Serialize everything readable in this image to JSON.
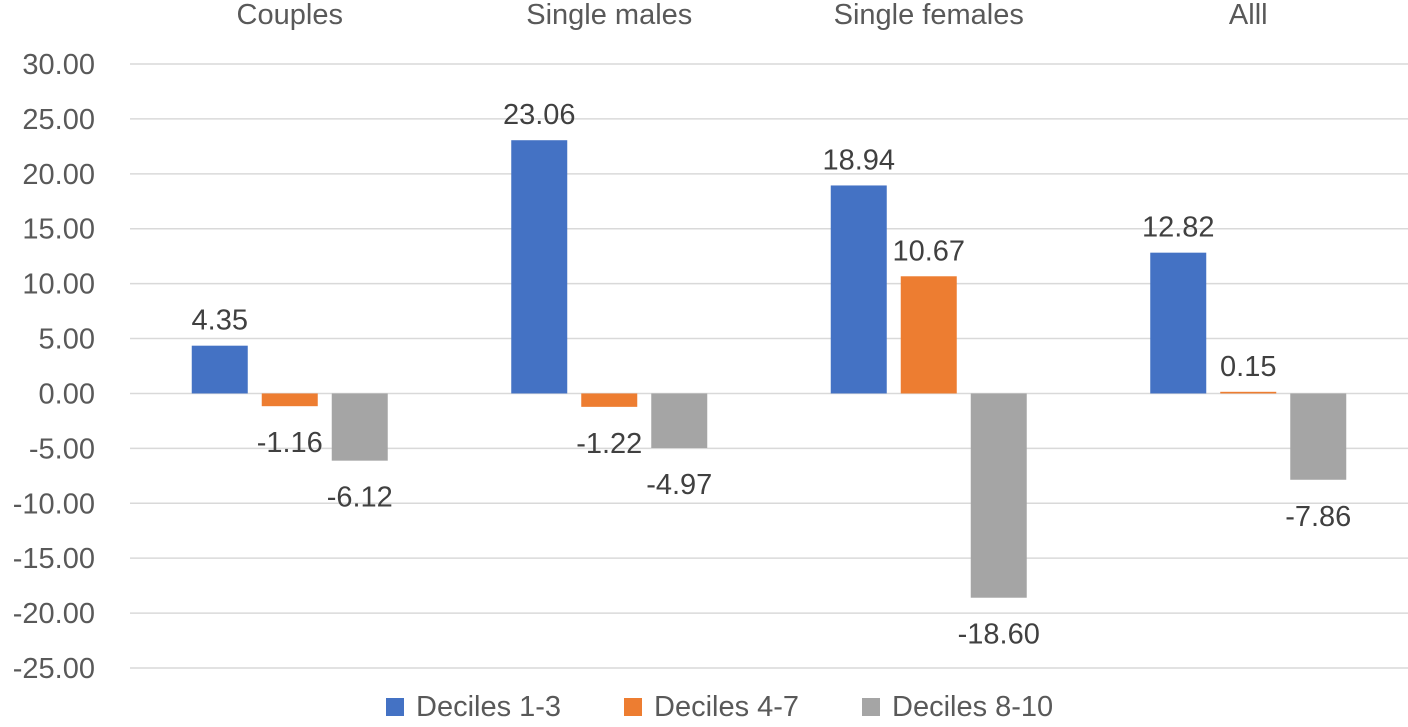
{
  "chart_data": {
    "type": "bar",
    "categories": [
      "Couples",
      "Single males",
      "Single females",
      "Alll"
    ],
    "series": [
      {
        "name": "Deciles 1-3",
        "color": "#4472C4",
        "values": [
          4.35,
          23.06,
          18.94,
          12.82
        ]
      },
      {
        "name": "Deciles 4-7",
        "color": "#ED7D31",
        "values": [
          -1.16,
          -1.22,
          10.67,
          0.15
        ]
      },
      {
        "name": "Deciles 8-10",
        "color": "#A5A5A5",
        "values": [
          -6.12,
          -4.97,
          -18.6,
          -7.86
        ]
      }
    ],
    "data_labels": [
      [
        "4.35",
        "23.06",
        "18.94",
        "12.82"
      ],
      [
        "-1.16",
        "-1.22",
        "10.67",
        "0.15"
      ],
      [
        "-6.12",
        "-4.97",
        "-18.60",
        "-7.86"
      ]
    ],
    "ylim": [
      -25,
      30
    ],
    "yticks": [
      30,
      25,
      20,
      15,
      10,
      5,
      0,
      -5,
      -10,
      -15,
      -20,
      -25
    ],
    "ytick_labels": [
      "30.00",
      "25.00",
      "20.00",
      "15.00",
      "10.00",
      "5.00",
      "0.00",
      "-5.00",
      "-10.00",
      "-15.00",
      "-20.00",
      "-25.00"
    ],
    "category_labels_position": "top",
    "legend_position": "bottom",
    "grid": true,
    "title": "",
    "xlabel": "",
    "ylabel": ""
  }
}
